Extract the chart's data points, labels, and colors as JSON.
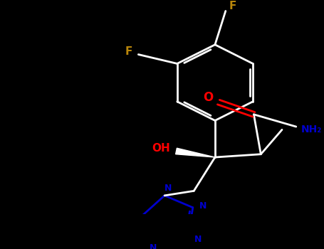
{
  "background_color": "#000000",
  "bond_color": "#ffffff",
  "atom_colors": {
    "F": "#b8860b",
    "O": "#ff0000",
    "N": "#0000cd",
    "OH": "#ff0000",
    "C": "#ffffff"
  },
  "figsize": [
    4.55,
    3.5
  ],
  "dpi": 100,
  "xlim": [
    0,
    455
  ],
  "ylim": [
    0,
    350
  ]
}
